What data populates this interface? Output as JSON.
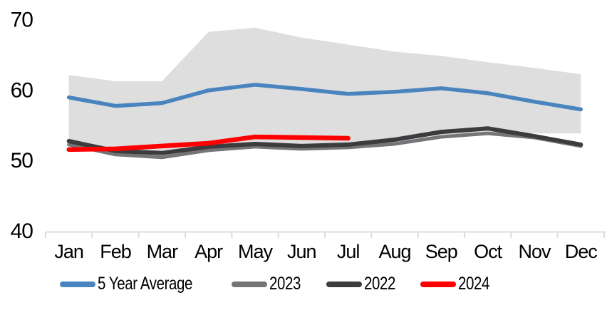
{
  "chart_data": {
    "type": "line",
    "title": "",
    "xlabel": "",
    "ylabel": "",
    "x_categories": [
      "Jan",
      "Feb",
      "Mar",
      "Apr",
      "May",
      "Jun",
      "Jul",
      "Aug",
      "Sep",
      "Oct",
      "Nov",
      "Dec"
    ],
    "yticks": [
      40,
      50,
      60,
      70
    ],
    "ylim": [
      40,
      70
    ],
    "grid": false,
    "legend_position": "bottom",
    "axis_color": "#DCDCDC",
    "text_color": "#000000",
    "range_band": {
      "color": "#DEDEDE",
      "top": [
        62.2,
        61.3,
        61.3,
        68.3,
        68.9,
        67.5,
        66.5,
        65.5,
        64.9,
        64.0,
        63.2,
        62.3
      ],
      "bottom": [
        52.5,
        51.2,
        50.9,
        51.6,
        52.0,
        51.8,
        52.0,
        52.5,
        53.3,
        54.0,
        53.9,
        53.9
      ]
    },
    "series": [
      {
        "name": "5 Year Average",
        "color": "#4A84BE",
        "stroke_width": 5.5,
        "values": [
          59.0,
          57.8,
          58.2,
          60.0,
          60.8,
          60.2,
          59.5,
          59.8,
          60.3,
          59.6,
          58.4,
          57.3
        ]
      },
      {
        "name": "2023",
        "color": "#757578",
        "stroke_width": 5,
        "values": [
          52.3,
          50.9,
          50.5,
          51.5,
          52.0,
          51.7,
          51.9,
          52.4,
          53.4,
          53.9,
          53.3,
          52.1
        ]
      },
      {
        "name": "2022",
        "color": "#3C3C3E",
        "stroke_width": 6,
        "values": [
          52.8,
          51.4,
          51.1,
          52.0,
          52.4,
          52.1,
          52.3,
          53.0,
          54.1,
          54.6,
          53.5,
          52.3
        ]
      },
      {
        "name": "2024",
        "color": "#FE0000",
        "stroke_width": 6.5,
        "values": [
          51.6,
          51.7,
          52.1,
          52.5,
          53.4,
          53.3,
          53.2
        ]
      }
    ]
  }
}
